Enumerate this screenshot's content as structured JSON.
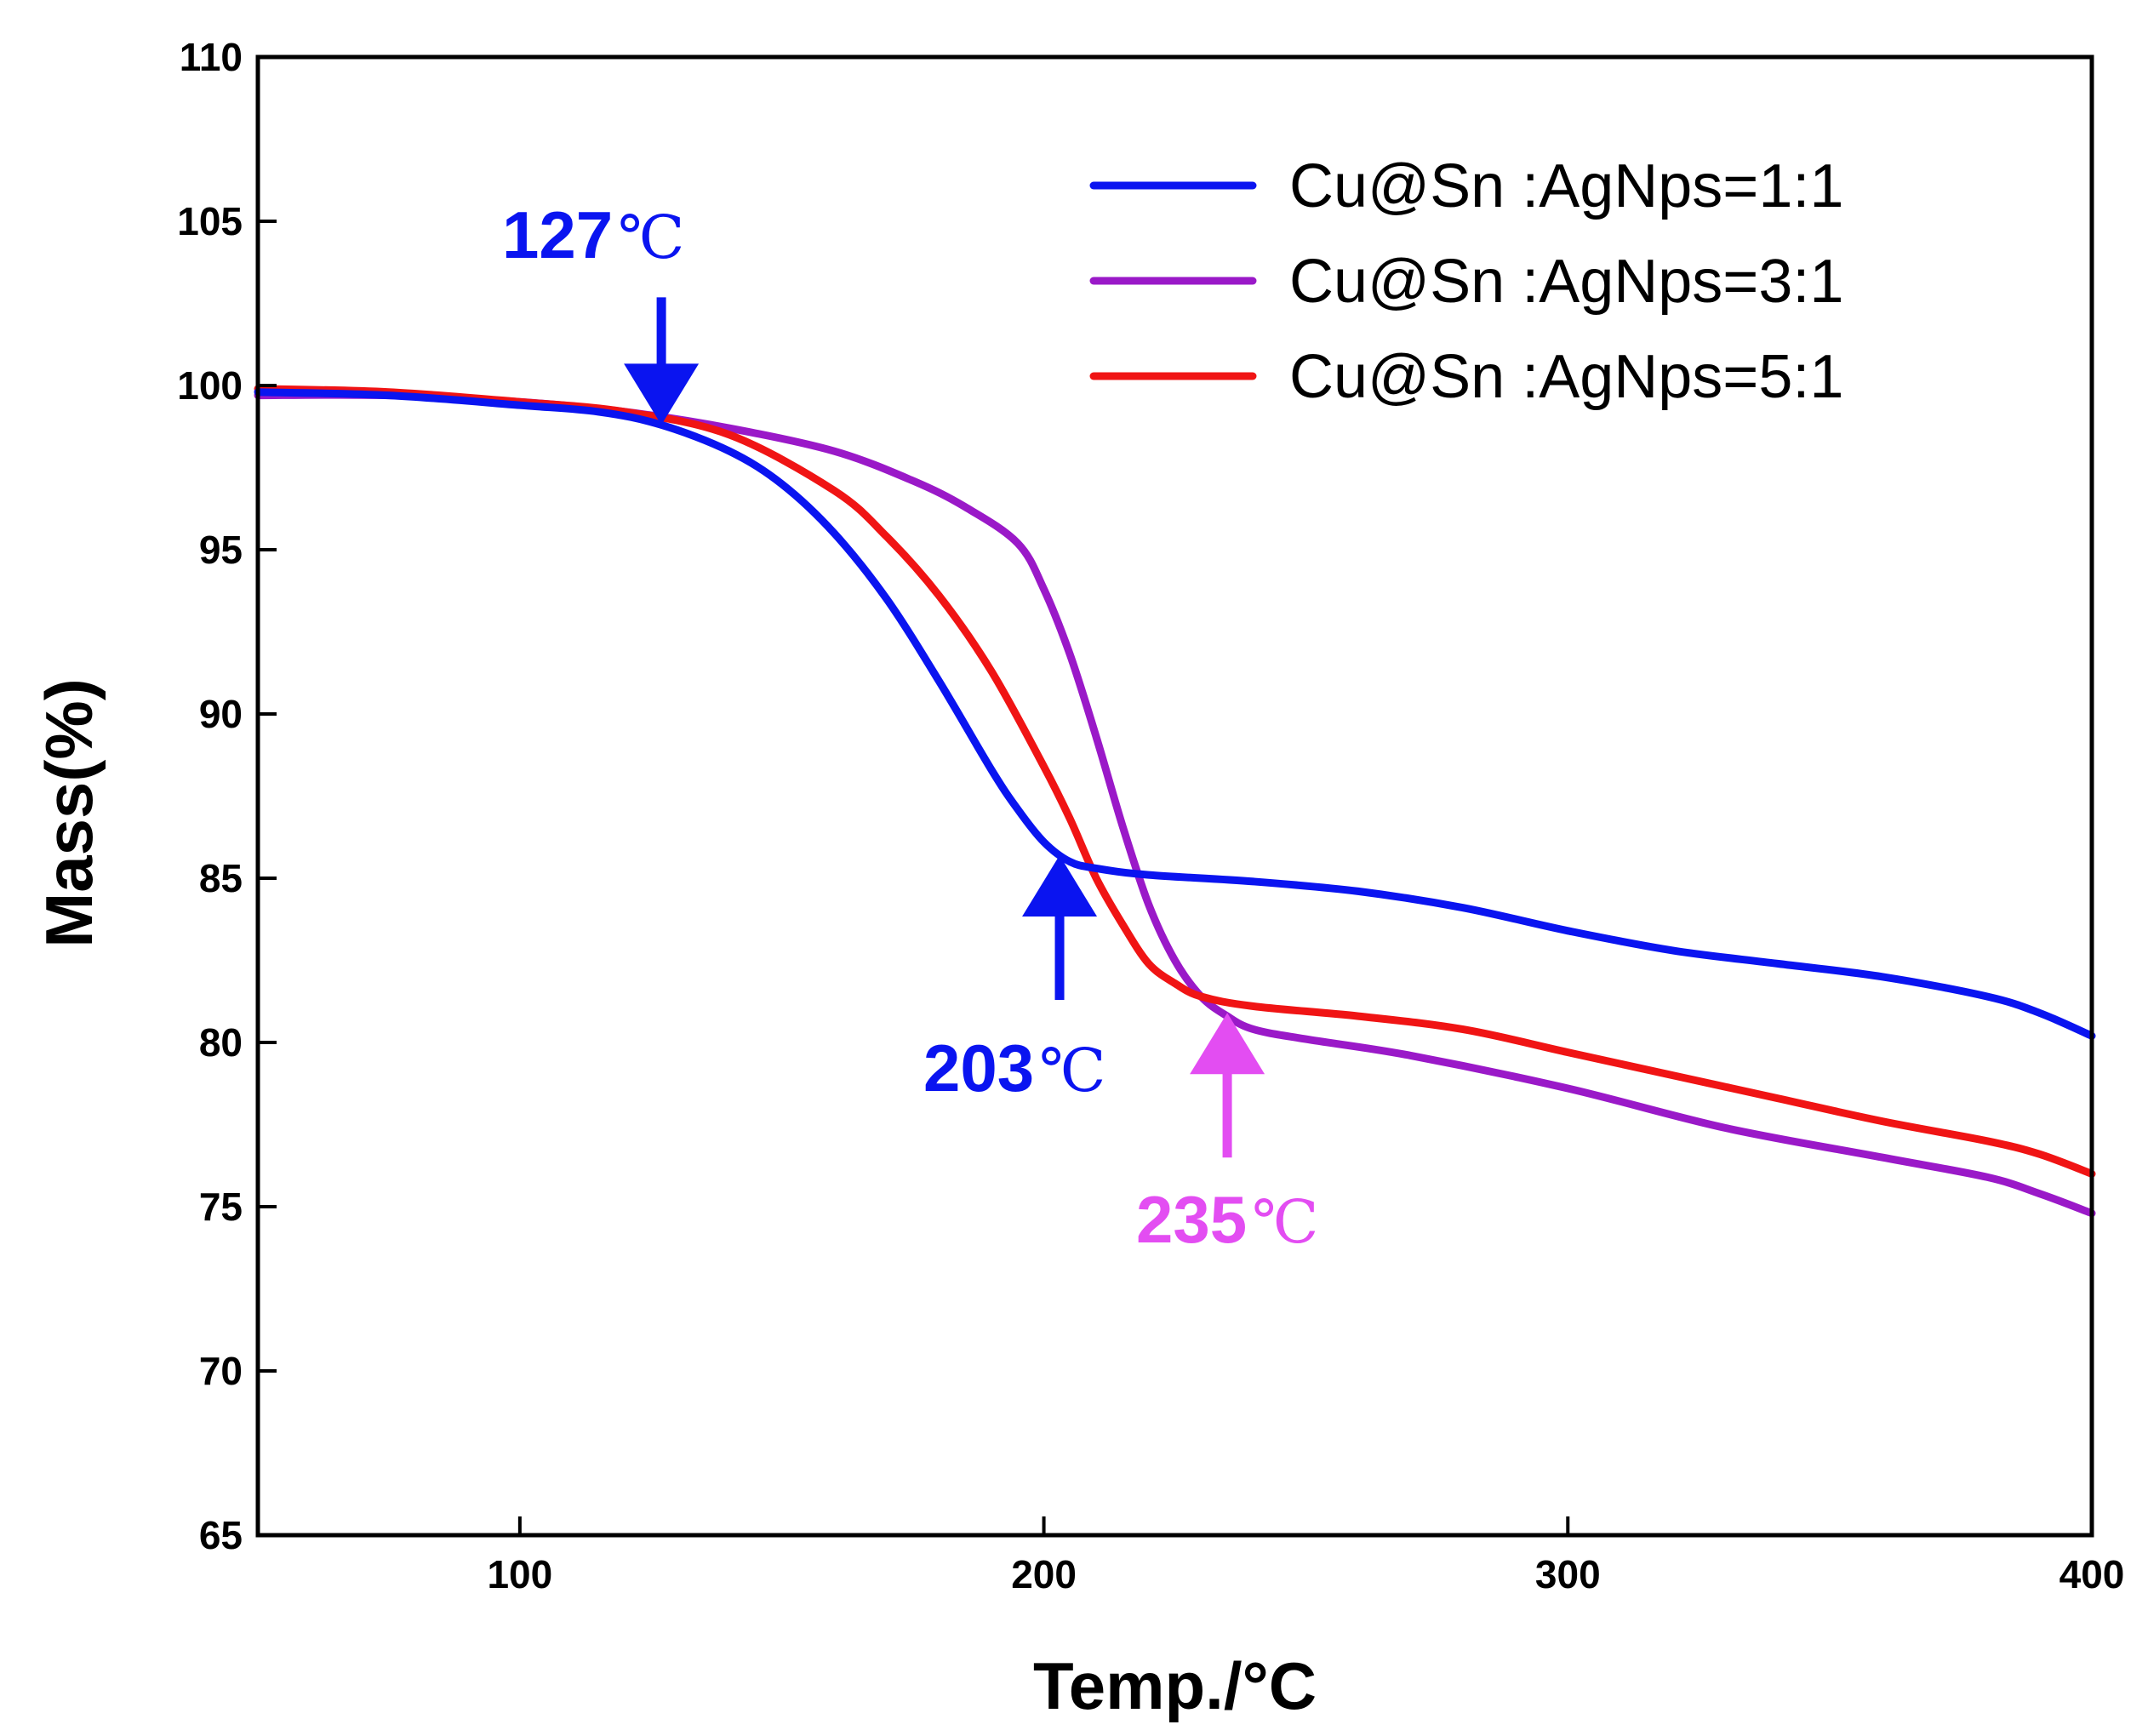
{
  "chart_data": {
    "type": "line",
    "title": "",
    "xlabel": "Temp./°C",
    "ylabel": "Mass(%)",
    "xlim": [
      50,
      400
    ],
    "ylim": [
      65,
      110
    ],
    "xticks": [
      100,
      200,
      300,
      400
    ],
    "yticks": [
      65,
      70,
      75,
      80,
      85,
      90,
      95,
      100,
      105,
      110
    ],
    "grid": false,
    "legend_position": "top-right",
    "series": [
      {
        "name": "Cu@Sn :AgNps=1:1",
        "color": "#0a14f0",
        "x": [
          50,
          75,
          100,
          115,
          127,
          140,
          150,
          160,
          170,
          180,
          190,
          195,
          200,
          205,
          210,
          220,
          240,
          260,
          280,
          300,
          320,
          340,
          360,
          380,
          390,
          400
        ],
        "y": [
          99.8,
          99.7,
          99.4,
          99.2,
          98.8,
          98.0,
          97.0,
          95.5,
          93.5,
          91.0,
          88.3,
          87.1,
          86.1,
          85.5,
          85.3,
          85.1,
          84.9,
          84.6,
          84.1,
          83.4,
          82.8,
          82.4,
          82.0,
          81.4,
          80.9,
          80.2
        ]
      },
      {
        "name": "Cu@Sn :AgNps=3:1",
        "color": "#9a19c8",
        "x": [
          50,
          75,
          100,
          120,
          140,
          160,
          175,
          185,
          195,
          200,
          205,
          210,
          215,
          220,
          225,
          230,
          235,
          240,
          250,
          270,
          300,
          330,
          360,
          380,
          390,
          400
        ],
        "y": [
          99.7,
          99.7,
          99.5,
          99.2,
          98.7,
          98.0,
          97.1,
          96.3,
          95.2,
          93.8,
          91.8,
          89.3,
          86.6,
          84.2,
          82.5,
          81.4,
          80.8,
          80.4,
          80.1,
          79.6,
          78.6,
          77.4,
          76.5,
          75.9,
          75.4,
          74.8
        ]
      },
      {
        "name": "Cu@Sn :AgNps=5:1",
        "color": "#f01414",
        "x": [
          50,
          75,
          100,
          120,
          140,
          160,
          170,
          180,
          190,
          200,
          205,
          210,
          215,
          220,
          225,
          230,
          240,
          260,
          280,
          300,
          320,
          340,
          360,
          380,
          390,
          400
        ],
        "y": [
          99.9,
          99.8,
          99.5,
          99.2,
          98.5,
          96.8,
          95.4,
          93.6,
          91.3,
          88.4,
          86.8,
          85.0,
          83.6,
          82.4,
          81.8,
          81.4,
          81.1,
          80.8,
          80.4,
          79.7,
          79.0,
          78.3,
          77.6,
          77.0,
          76.6,
          76.0
        ]
      }
    ],
    "annotations": [
      {
        "number": "127",
        "unit": "℃",
        "color": "#0a14f0",
        "x": 127,
        "y": 98.8,
        "arrow": "down"
      },
      {
        "number": "203",
        "unit": "℃",
        "color": "#0a14f0",
        "x": 203,
        "y": 85.7,
        "arrow": "up"
      },
      {
        "number": "235",
        "unit": "℃",
        "color": "#e34df2",
        "x": 235,
        "y": 80.9,
        "arrow": "up"
      }
    ]
  }
}
